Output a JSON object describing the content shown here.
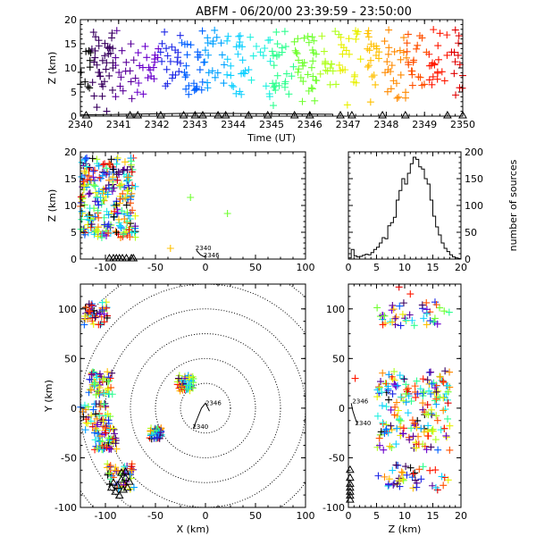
{
  "title": "ABFM - 06/20/00 23:39:59 - 23:50:00",
  "chart_data": [
    {
      "id": "time_height",
      "type": "scatter",
      "xlabel": "Time (UT)",
      "ylabel": "Z (km)",
      "xlim": [
        2340,
        2350
      ],
      "ylim": [
        0,
        20
      ],
      "xticks": [
        "2340",
        "2341",
        "2342",
        "2343",
        "2344",
        "2345",
        "2346",
        "2347",
        "2348",
        "2349",
        "2350"
      ],
      "yticks": [
        "0",
        "5",
        "10",
        "15",
        "20"
      ],
      "stations_z": 0,
      "station_times": [
        2340.15,
        2341.3,
        2341.5,
        2342.1,
        2342.7,
        2343.0,
        2343.2,
        2343.6,
        2343.8,
        2344.4,
        2344.9,
        2345.6,
        2346.0,
        2346.8,
        2347.1,
        2347.9,
        2348.5,
        2349.6,
        2350.0
      ]
    },
    {
      "id": "xz",
      "type": "scatter",
      "xlabel": "",
      "ylabel": "Z (km)",
      "xlim": [
        -125,
        100
      ],
      "ylim": [
        0,
        20
      ],
      "xticks": [
        "-100",
        "-50",
        "0",
        "50",
        "100"
      ],
      "yticks": [
        "0",
        "5",
        "10",
        "15",
        "20"
      ],
      "station_x": [
        -96,
        -92,
        -89,
        -86,
        -83,
        -79,
        -74,
        -72
      ],
      "track_labels": [
        "2340",
        "2346"
      ],
      "track_points": [
        [
          -9,
          1.6
        ],
        [
          -5,
          0.8
        ],
        [
          -1,
          0.4
        ]
      ]
    },
    {
      "id": "histogram",
      "type": "bar",
      "xlabel": "",
      "ylabel": "number of sources",
      "xlim": [
        0,
        20
      ],
      "ylim": [
        0,
        200
      ],
      "xticks": [
        "0",
        "5",
        "10",
        "15",
        "20"
      ],
      "yticks": [
        "0",
        "50",
        "100",
        "150",
        "200"
      ],
      "bin_width": 0.5,
      "bin_start": 0,
      "values": [
        2,
        18,
        6,
        4,
        5,
        7,
        9,
        8,
        12,
        18,
        22,
        30,
        40,
        38,
        62,
        68,
        78,
        110,
        128,
        150,
        140,
        160,
        178,
        190,
        186,
        172,
        168,
        150,
        140,
        110,
        80,
        60,
        45,
        30,
        20,
        14,
        8,
        4,
        2,
        1
      ]
    },
    {
      "id": "xy",
      "type": "scatter",
      "xlabel": "X (km)",
      "ylabel": "Y (km)",
      "xlim": [
        -125,
        100
      ],
      "ylim": [
        -100,
        125
      ],
      "xticks": [
        "-100",
        "-50",
        "0",
        "50",
        "100"
      ],
      "yticks": [
        "-100",
        "-50",
        "0",
        "50",
        "100"
      ],
      "range_rings_km": [
        25,
        50,
        75,
        100,
        125,
        150
      ],
      "track_labels": [
        "2346",
        "2340"
      ],
      "track_points": [
        [
          -12,
          -20
        ],
        [
          -8,
          -10
        ],
        [
          -4,
          0
        ],
        [
          0,
          5
        ],
        [
          4,
          -3
        ]
      ]
    },
    {
      "id": "zy",
      "type": "scatter",
      "xlabel": "Z (km)",
      "ylabel": "",
      "xlim": [
        0,
        20
      ],
      "ylim": [
        -100,
        125
      ],
      "xticks": [
        "0",
        "5",
        "10",
        "15",
        "20"
      ],
      "yticks": [
        "-100",
        "-50",
        "0",
        "50",
        "100"
      ],
      "track_labels": [
        "2346",
        "2340"
      ],
      "track_points": [
        [
          0.5,
          5
        ],
        [
          0.8,
          -3
        ],
        [
          1.2,
          -10
        ],
        [
          1.6,
          -16
        ]
      ]
    }
  ]
}
